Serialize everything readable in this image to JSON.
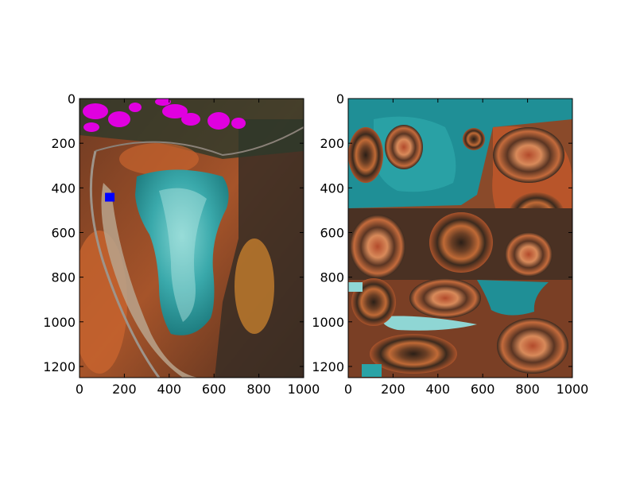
{
  "chart_data": [
    {
      "type": "image",
      "image": "aerial photograph of a frozen turquoise pond surrounded by autumn forest, with magenta-highlighted tree crowns at top and a blue square marker",
      "xlim": [
        0,
        1000
      ],
      "ylim": [
        1250,
        0
      ],
      "y_axis_inverted": true,
      "xticks": [
        0,
        200,
        400,
        600,
        800,
        1000
      ],
      "yticks": [
        0,
        200,
        400,
        600,
        800,
        1000,
        1200
      ],
      "marker": {
        "shape": "square",
        "color": "#0000ff",
        "x": 135,
        "y": 440
      },
      "highlight_color": "#e000e0",
      "grid": false,
      "colors": {
        "water": "#2fa4a6",
        "ice": "#8fd6d4",
        "forest_orange": "#c8642e",
        "forest_dark": "#2a2a25",
        "trail": "#b8a38c"
      }
    },
    {
      "type": "image",
      "image": "swirled / liquified distortion of the same aerial photograph",
      "xlim": [
        0,
        1000
      ],
      "ylim": [
        1250,
        0
      ],
      "y_axis_inverted": true,
      "xticks": [
        0,
        200,
        400,
        600,
        800,
        1000
      ],
      "yticks": [
        0,
        200,
        400,
        600,
        800,
        1000,
        1200
      ],
      "grid": false,
      "colors": {
        "teal": "#1f8f96",
        "rust": "#b8552a",
        "brown": "#5a3a26",
        "cream": "#d9b7a0",
        "dark": "#231d18"
      }
    }
  ]
}
